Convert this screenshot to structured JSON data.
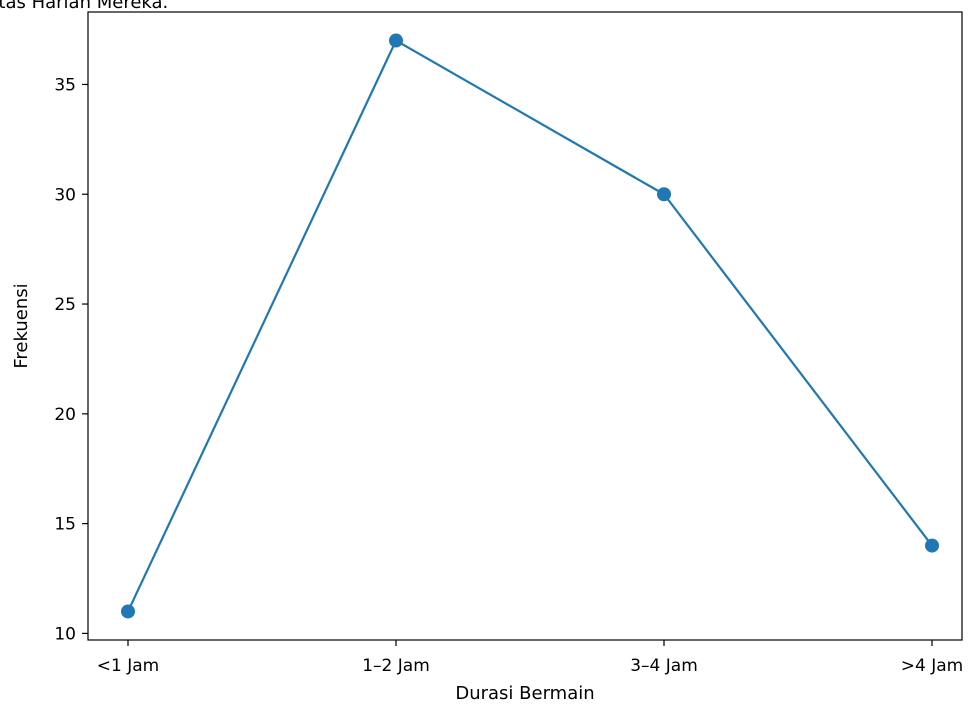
{
  "chart_data": {
    "type": "line",
    "title": "ritas Harian Mereka.",
    "xlabel": "Durasi Bermain",
    "ylabel": "Frekuensi",
    "categories": [
      "<1 Jam",
      "1–2 Jam",
      "3–4 Jam",
      ">4 Jam"
    ],
    "series": [
      {
        "values": [
          11,
          37,
          30,
          14
        ],
        "color": "#1f77b4",
        "marker": "circle"
      }
    ],
    "yticks": [
      10,
      15,
      20,
      25,
      30,
      35
    ],
    "ylim": [
      9.7,
      38.3
    ],
    "grid": false,
    "legend": "none"
  }
}
